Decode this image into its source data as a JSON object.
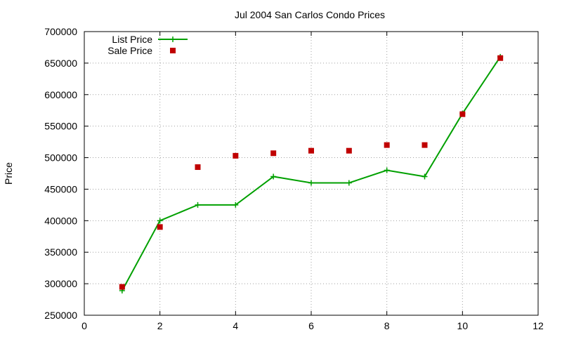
{
  "chart_data": {
    "type": "line",
    "title": "Jul 2004 San Carlos Condo Prices",
    "xlabel": "",
    "ylabel": "Price",
    "xlim": [
      0,
      12
    ],
    "ylim": [
      250000,
      700000
    ],
    "xticks": [
      0,
      2,
      4,
      6,
      8,
      10,
      12
    ],
    "yticks": [
      250000,
      300000,
      350000,
      400000,
      450000,
      500000,
      550000,
      600000,
      650000,
      700000
    ],
    "grid": true,
    "legend_position": "top-left",
    "series": [
      {
        "name": "List Price",
        "style": "line-with-plus-markers",
        "color": "#00a000",
        "x": [
          1,
          2,
          3,
          4,
          5,
          6,
          7,
          8,
          9,
          10,
          11
        ],
        "y": [
          289000,
          400000,
          425000,
          425000,
          470000,
          460000,
          460000,
          480000,
          470000,
          570000,
          660000
        ]
      },
      {
        "name": "Sale Price",
        "style": "square-markers",
        "color": "#c00000",
        "x": [
          1,
          2,
          3,
          4,
          5,
          6,
          7,
          8,
          9,
          10,
          11
        ],
        "y": [
          295000,
          390000,
          485000,
          503000,
          507000,
          511000,
          511000,
          520000,
          520000,
          569000,
          658000
        ]
      }
    ]
  }
}
